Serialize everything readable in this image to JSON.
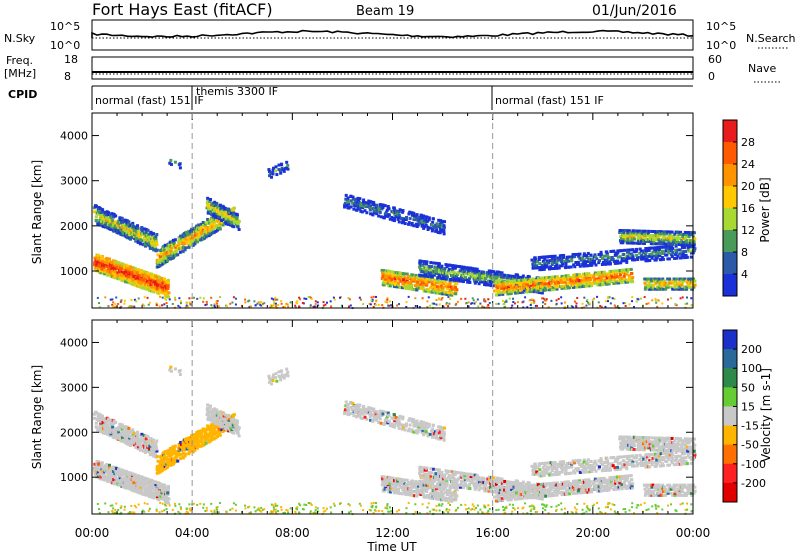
{
  "header": {
    "station": "Fort Hays East (fitACF)",
    "beam": "Beam 19",
    "date": "01/Jun/2016"
  },
  "strip": {
    "nsky_label": "N.Sky",
    "nsky_ticks": [
      "10^5",
      "10^0"
    ],
    "nsearch_label": "N.Search",
    "nsearch_ticks": [
      "10^5",
      "10^0"
    ],
    "freq_label": "Freq.",
    "freq_unit": "[MHz]",
    "freq_ticks": [
      "18",
      "8"
    ],
    "nave_label": "Nave",
    "nave_ticks": [
      "60",
      "0"
    ],
    "cpid_label": "CPID",
    "cpid_segments": [
      {
        "label": "normal (fast) 151 IF",
        "start": 0,
        "end": 4
      },
      {
        "label": "themis 3300 IF",
        "start": 4,
        "end": 16
      },
      {
        "label": "normal (fast) 151 IF",
        "start": 16,
        "end": 24
      }
    ]
  },
  "chart_data": [
    {
      "type": "heatmap",
      "name": "power",
      "ylabel": "Slant Range [km]",
      "colorbar_label": "Power [dB]",
      "colorbar_ticks": [
        "28",
        "24",
        "20",
        "16",
        "12",
        "8",
        "4"
      ],
      "colorbar_colors": [
        "#e81c1c",
        "#ff5a00",
        "#ff9400",
        "#ffc800",
        "#a8d832",
        "#4a9a5a",
        "#2a5aa8",
        "#1a30d8"
      ],
      "ylim": [
        180,
        4500
      ],
      "yticks": [
        "4000",
        "3000",
        "2000",
        "1000"
      ],
      "xlim": [
        0,
        24
      ],
      "xticks": [
        "00:00",
        "04:00",
        "08:00",
        "12:00",
        "16:00",
        "20:00",
        "00:00"
      ]
    },
    {
      "type": "heatmap",
      "name": "velocity",
      "ylabel": "Slant Range [km]",
      "colorbar_label": "Velocity [m s-1]",
      "colorbar_ticks": [
        "200",
        "100",
        "50",
        "15",
        "-15",
        "-50",
        "-100",
        "-200"
      ],
      "colorbar_colors": [
        "#1a30c8",
        "#2a6a9a",
        "#2e8a4a",
        "#66cc33",
        "#c8c8c8",
        "#ffb400",
        "#ff7000",
        "#ff2020",
        "#e00000"
      ],
      "ylim": [
        180,
        4500
      ],
      "yticks": [
        "4000",
        "3000",
        "2000",
        "1000"
      ],
      "xlim": [
        0,
        24
      ],
      "xticks": [
        "00:00",
        "04:00",
        "08:00",
        "12:00",
        "16:00",
        "20:00",
        "00:00"
      ],
      "xlabel": "Time UT"
    }
  ]
}
